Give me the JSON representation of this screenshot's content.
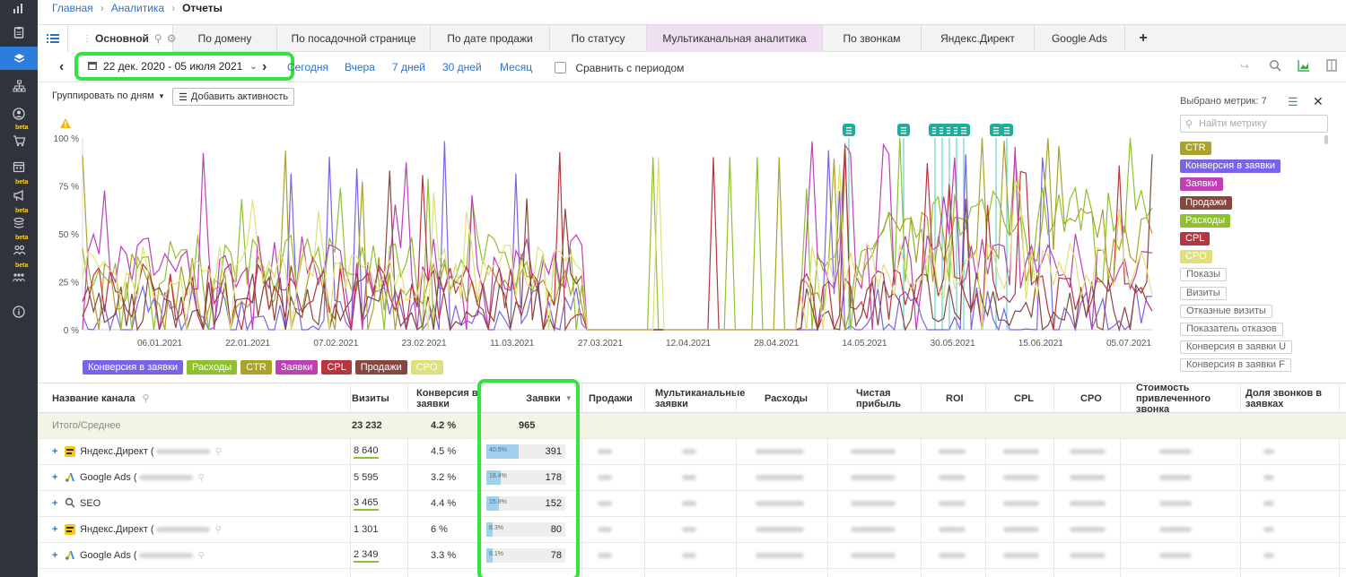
{
  "sidebar": {
    "items": [
      {
        "icon": "bar-chart-icon",
        "active": false,
        "beta": false
      },
      {
        "icon": "clipboard-icon",
        "active": false,
        "beta": false
      },
      {
        "icon": "layers-icon",
        "active": true,
        "beta": false
      },
      {
        "icon": "hierarchy-icon",
        "active": false,
        "beta": false
      },
      {
        "icon": "user-icon",
        "active": false,
        "beta": false
      },
      {
        "icon": "cart-icon",
        "active": false,
        "beta": true
      },
      {
        "icon": "calendar-icon",
        "active": false,
        "beta": false
      },
      {
        "icon": "megaphone-icon",
        "active": false,
        "beta": true
      },
      {
        "icon": "stack-icon",
        "active": false,
        "beta": true
      },
      {
        "icon": "team-icon",
        "active": false,
        "beta": true
      },
      {
        "icon": "group-icon",
        "active": false,
        "beta": true
      },
      {
        "icon": "info-icon",
        "active": false,
        "beta": false
      }
    ],
    "beta_label": "beta"
  },
  "breadcrumb": {
    "home": "Главная",
    "section": "Аналитика",
    "current": "Отчеты"
  },
  "tabs": {
    "main": "Основной",
    "items": [
      "По домену",
      "По посадочной странице",
      "По дате продажи",
      "По статусу",
      "Мультиканальная аналитика",
      "По звонкам",
      "Яндекс.Директ",
      "Google Ads"
    ],
    "active": "Мультиканальная аналитика",
    "add": "+"
  },
  "toolbar": {
    "date_range": "22 дек. 2020 - 05 июля 2021",
    "quick": [
      "Сегодня",
      "Вчера",
      "7 дней",
      "30 дней",
      "Месяц"
    ],
    "compare_label": "Сравнить с периодом",
    "compare_checked": false
  },
  "chart_controls": {
    "group_by": "Группировать по дням",
    "add_activity": "Добавить активность"
  },
  "metrics_panel": {
    "selected": "Выбрано метрик: 7",
    "search_placeholder": "Найти метрику",
    "active_metrics": [
      {
        "name": "CTR",
        "color": "#a9a32b"
      },
      {
        "name": "Конверсия в заявки",
        "color": "#7a63e8"
      },
      {
        "name": "Заявки",
        "color": "#bf3fb5"
      },
      {
        "name": "Продажи",
        "color": "#87473f"
      },
      {
        "name": "Расходы",
        "color": "#8fc02e"
      },
      {
        "name": "CPL",
        "color": "#b8353f"
      },
      {
        "name": "CPO",
        "color": "#e0e07a"
      }
    ],
    "inactive_metrics": [
      "Показы",
      "Визиты",
      "Отказные визиты",
      "Показатель отказов",
      "Конверсия в заявки U",
      "Конверсия в заявки F"
    ]
  },
  "chart_data": {
    "type": "line",
    "ylabels": [
      "100 %",
      "75 %",
      "50 %",
      "25 %",
      "0 %"
    ],
    "ylim": [
      0,
      100
    ],
    "xlabels": [
      "06.01.2021",
      "22.01.2021",
      "07.02.2021",
      "23.02.2021",
      "11.03.2021",
      "27.03.2021",
      "12.04.2021",
      "28.04.2021",
      "14.05.2021",
      "30.05.2021",
      "15.06.2021",
      "05.07.2021"
    ],
    "legend": [
      "Конверсия в заявки",
      "Расходы",
      "CTR",
      "Заявки",
      "CPL",
      "Продажи",
      "CPO"
    ],
    "legend_colors": [
      "#7a63e8",
      "#8fc02e",
      "#a9a32b",
      "#bf3fb5",
      "#b8353f",
      "#87473f",
      "#e0e07a"
    ],
    "activity_markers": 9
  },
  "table": {
    "headers": [
      "Название канала",
      "Визиты",
      "Конверсия в заявки",
      "Заявки",
      "Продажи",
      "Мультиканальные заявки",
      "Расходы",
      "Чистая прибыль",
      "ROI",
      "CPL",
      "CPO",
      "Стоимость привлеченного звонка",
      "Доля звонков в заявках"
    ],
    "sort_icon": "▼",
    "totals": {
      "label": "Итого/Среднее",
      "visits": "23 232",
      "conversion": "4.2 %",
      "leads": "965"
    },
    "rows": [
      {
        "name": "Яндекс.Директ (",
        "icon": "yandex-direct-icon",
        "visits": "8 640",
        "conversion": "4.5 %",
        "bar_pct": "40.5%",
        "bar_value": 0.405,
        "leads": "391"
      },
      {
        "name": "Google Ads (",
        "icon": "google-ads-icon",
        "visits": "5 595",
        "conversion": "3.2 %",
        "bar_pct": "18.4%",
        "bar_value": 0.184,
        "leads": "178"
      },
      {
        "name": "SEO",
        "icon": "search-engine-icon",
        "visits": "3 465",
        "conversion": "4.4 %",
        "bar_pct": "15.8%",
        "bar_value": 0.158,
        "leads": "152"
      },
      {
        "name": "Яндекс.Директ (",
        "icon": "yandex-direct-icon",
        "visits": "1 301",
        "conversion": "6 %",
        "bar_pct": "8.3%",
        "bar_value": 0.083,
        "leads": "80"
      },
      {
        "name": "Google Ads (",
        "icon": "google-ads-icon",
        "visits": "2 349",
        "conversion": "3.3 %",
        "bar_pct": "8.1%",
        "bar_value": 0.081,
        "leads": "78"
      }
    ]
  }
}
